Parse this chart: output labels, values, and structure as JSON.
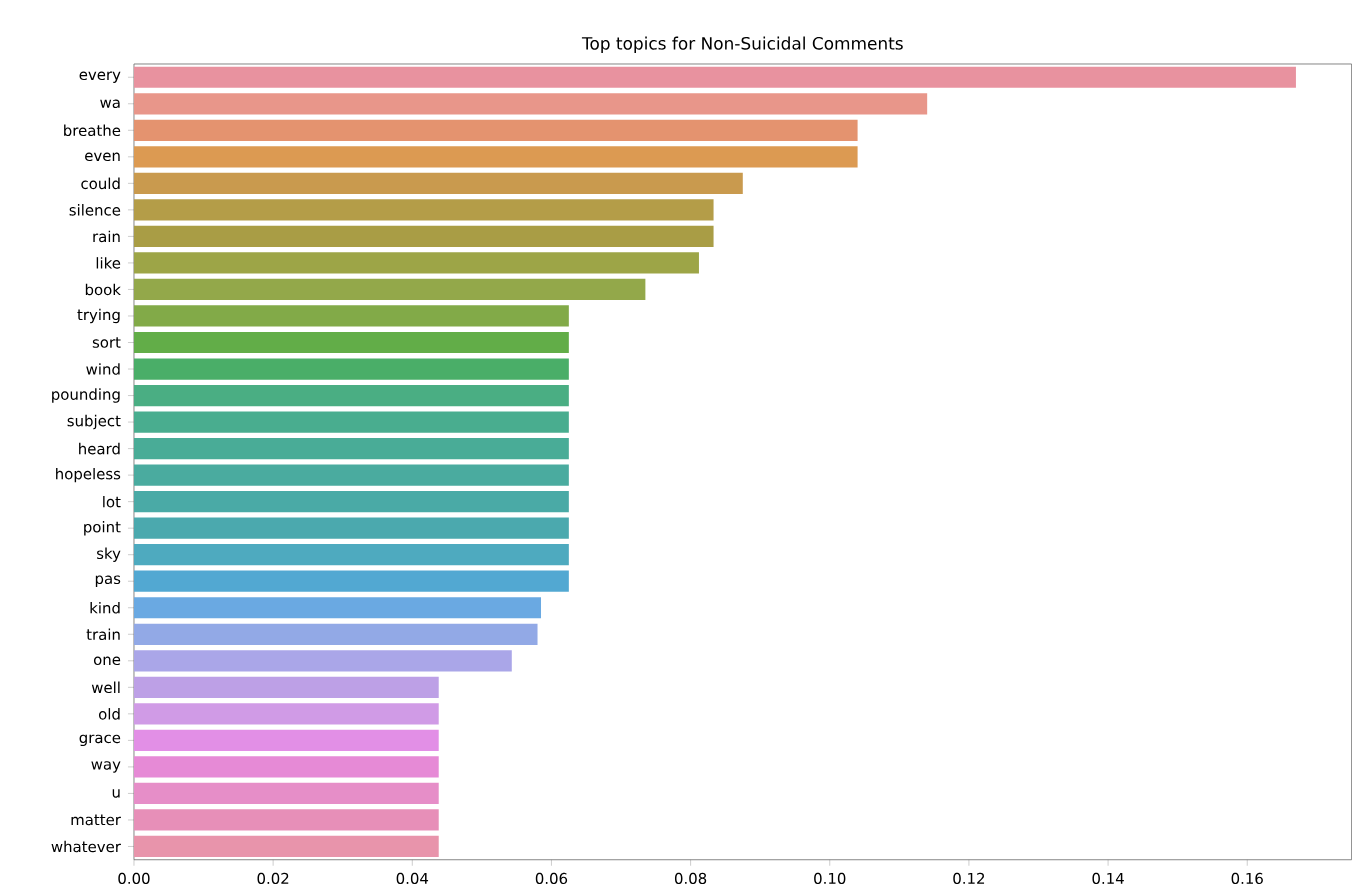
{
  "chart_data": {
    "type": "bar",
    "orientation": "horizontal",
    "title": "Top topics for Non-Suicidal Comments",
    "categories": [
      "every",
      "wa",
      "breathe",
      "even",
      "could",
      "silence",
      "rain",
      "like",
      "book",
      "trying",
      "sort",
      "wind",
      "pounding",
      "subject",
      "heard",
      "hopeless",
      "lot",
      "point",
      "sky",
      "pas",
      "kind",
      "train",
      "one",
      "well",
      "old",
      "grace",
      "way",
      "u",
      "matter",
      "whatever"
    ],
    "values": [
      0.167,
      0.114,
      0.104,
      0.104,
      0.0875,
      0.0833,
      0.0833,
      0.0812,
      0.0735,
      0.0625,
      0.0625,
      0.0625,
      0.0625,
      0.0625,
      0.0625,
      0.0625,
      0.0625,
      0.0625,
      0.0625,
      0.0625,
      0.0585,
      0.058,
      0.0543,
      0.0438,
      0.0438,
      0.0438,
      0.0438,
      0.0438,
      0.0438,
      0.0438
    ],
    "colors": [
      "#e8929f",
      "#e8968a",
      "#e4936f",
      "#dc9a52",
      "#c99a4e",
      "#b49d48",
      "#a99d45",
      "#9da547",
      "#93a84a",
      "#82aa48",
      "#62ad48",
      "#4aae68",
      "#4aae83",
      "#49ad8f",
      "#49ac97",
      "#4aab9f",
      "#4aaaa6",
      "#4ba9ae",
      "#4eaabf",
      "#52a8d2",
      "#6aa9e2",
      "#92a9e6",
      "#aaa6e8",
      "#bda0e6",
      "#d09be6",
      "#e28fe6",
      "#e68ad6",
      "#e68ec8",
      "#e78fb8",
      "#e894ab"
    ],
    "xlim": [
      0,
      0.175
    ],
    "xticks": [
      {
        "value": 0,
        "label": "0.00"
      },
      {
        "value": 0.02,
        "label": "0.02"
      },
      {
        "value": 0.04,
        "label": "0.04"
      },
      {
        "value": 0.06,
        "label": "0.06"
      },
      {
        "value": 0.08,
        "label": "0.08"
      },
      {
        "value": 0.1,
        "label": "0.10"
      },
      {
        "value": 0.12,
        "label": "0.12"
      },
      {
        "value": 0.14,
        "label": "0.14"
      },
      {
        "value": 0.16,
        "label": "0.16"
      }
    ]
  }
}
